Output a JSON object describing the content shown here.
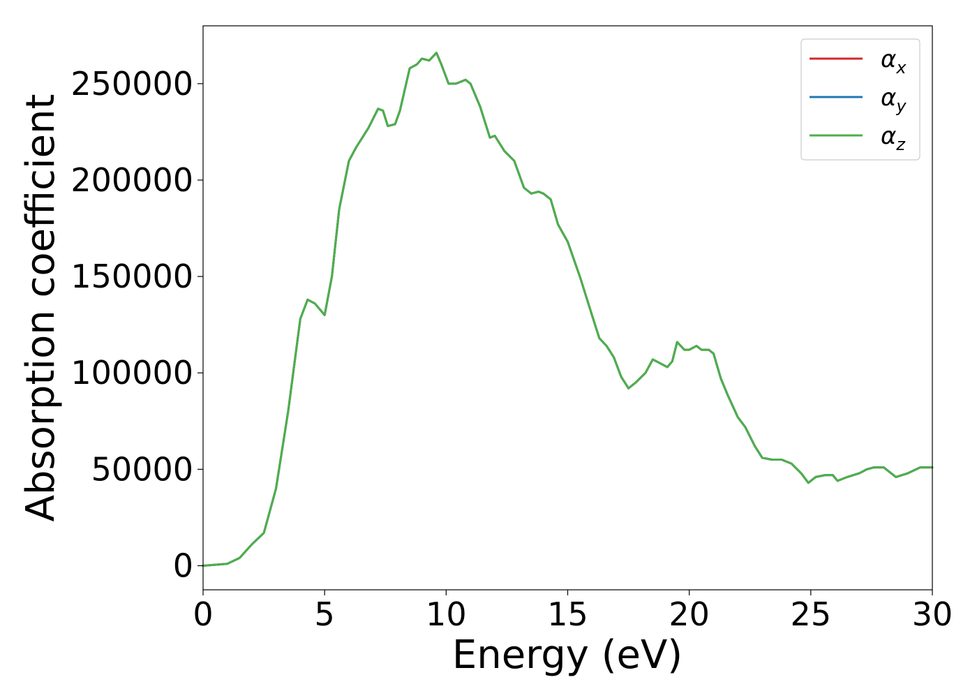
{
  "chart_data": {
    "type": "line",
    "xlabel": "Energy (eV)",
    "ylabel": "Absorption coefficient",
    "xlim": [
      0,
      30
    ],
    "ylim": [
      -12500,
      280000
    ],
    "x_ticks": [
      0,
      5,
      10,
      15,
      20,
      25,
      30
    ],
    "y_ticks": [
      0,
      50000,
      100000,
      150000,
      200000,
      250000
    ],
    "grid": false,
    "legend_position": "top-right",
    "x": [
      0,
      0.5,
      1.0,
      1.5,
      2.0,
      2.5,
      3.0,
      3.5,
      4.0,
      4.3,
      4.6,
      5.0,
      5.3,
      5.6,
      6.0,
      6.3,
      6.8,
      7.2,
      7.4,
      7.6,
      7.9,
      8.1,
      8.5,
      8.8,
      9.0,
      9.3,
      9.6,
      9.8,
      10.1,
      10.4,
      10.8,
      11.0,
      11.4,
      11.8,
      12.0,
      12.4,
      12.8,
      13.2,
      13.5,
      13.8,
      14.0,
      14.3,
      14.6,
      15.0,
      15.5,
      16.0,
      16.3,
      16.6,
      16.9,
      17.2,
      17.5,
      17.8,
      18.2,
      18.5,
      18.8,
      19.1,
      19.3,
      19.5,
      19.8,
      20.0,
      20.3,
      20.5,
      20.8,
      21.0,
      21.3,
      21.6,
      22.0,
      22.3,
      22.7,
      23.0,
      23.4,
      23.8,
      24.2,
      24.6,
      24.9,
      25.2,
      25.6,
      25.9,
      26.1,
      26.5,
      27.0,
      27.3,
      27.6,
      28.0,
      28.5,
      29.0,
      29.5,
      30.0
    ],
    "series": [
      {
        "name": "x",
        "color": "#d62728",
        "values": [
          0,
          500,
          1000,
          4000,
          11000,
          17000,
          40000,
          80000,
          128000,
          138000,
          136000,
          130000,
          150000,
          185000,
          210000,
          217000,
          227000,
          237000,
          236000,
          228000,
          229000,
          236000,
          258000,
          260000,
          263000,
          262000,
          266000,
          260000,
          250000,
          250000,
          252000,
          250000,
          238000,
          222000,
          223000,
          215000,
          210000,
          196000,
          193000,
          194000,
          193000,
          190000,
          177000,
          168000,
          150000,
          130000,
          118000,
          114000,
          108000,
          98000,
          92000,
          95000,
          100000,
          107000,
          105000,
          103000,
          106000,
          116000,
          112000,
          112000,
          114000,
          112000,
          112000,
          110000,
          97000,
          88000,
          77000,
          72000,
          62000,
          56000,
          55000,
          55000,
          53000,
          48000,
          43000,
          46000,
          47000,
          47000,
          44000,
          46000,
          48000,
          50000,
          51000,
          51000,
          46000,
          48000,
          51000,
          51000
        ]
      },
      {
        "name": "y",
        "color": "#1f77b4",
        "values": [
          0,
          500,
          1000,
          4000,
          11000,
          17000,
          40000,
          80000,
          128000,
          138000,
          136000,
          130000,
          150000,
          185000,
          210000,
          217000,
          227000,
          237000,
          236000,
          228000,
          229000,
          236000,
          258000,
          260000,
          263000,
          262000,
          266000,
          260000,
          250000,
          250000,
          252000,
          250000,
          238000,
          222000,
          223000,
          215000,
          210000,
          196000,
          193000,
          194000,
          193000,
          190000,
          177000,
          168000,
          150000,
          130000,
          118000,
          114000,
          108000,
          98000,
          92000,
          95000,
          100000,
          107000,
          105000,
          103000,
          106000,
          116000,
          112000,
          112000,
          114000,
          112000,
          112000,
          110000,
          97000,
          88000,
          77000,
          72000,
          62000,
          56000,
          55000,
          55000,
          53000,
          48000,
          43000,
          46000,
          47000,
          47000,
          44000,
          46000,
          48000,
          50000,
          51000,
          51000,
          46000,
          48000,
          51000,
          51000
        ]
      },
      {
        "name": "z",
        "color": "#4daf4a",
        "values": [
          0,
          500,
          1000,
          4000,
          11000,
          17000,
          40000,
          80000,
          128000,
          138000,
          136000,
          130000,
          150000,
          185000,
          210000,
          217000,
          227000,
          237000,
          236000,
          228000,
          229000,
          236000,
          258000,
          260000,
          263000,
          262000,
          266000,
          260000,
          250000,
          250000,
          252000,
          250000,
          238000,
          222000,
          223000,
          215000,
          210000,
          196000,
          193000,
          194000,
          193000,
          190000,
          177000,
          168000,
          150000,
          130000,
          118000,
          114000,
          108000,
          98000,
          92000,
          95000,
          100000,
          107000,
          105000,
          103000,
          106000,
          116000,
          112000,
          112000,
          114000,
          112000,
          112000,
          110000,
          97000,
          88000,
          77000,
          72000,
          62000,
          56000,
          55000,
          55000,
          53000,
          48000,
          43000,
          46000,
          47000,
          47000,
          44000,
          46000,
          48000,
          50000,
          51000,
          51000,
          46000,
          48000,
          51000,
          51000
        ]
      }
    ],
    "legend": [
      {
        "symbol": "α",
        "sub": "x",
        "color": "#d62728"
      },
      {
        "symbol": "α",
        "sub": "y",
        "color": "#1f77b4"
      },
      {
        "symbol": "α",
        "sub": "z",
        "color": "#4daf4a"
      }
    ]
  }
}
